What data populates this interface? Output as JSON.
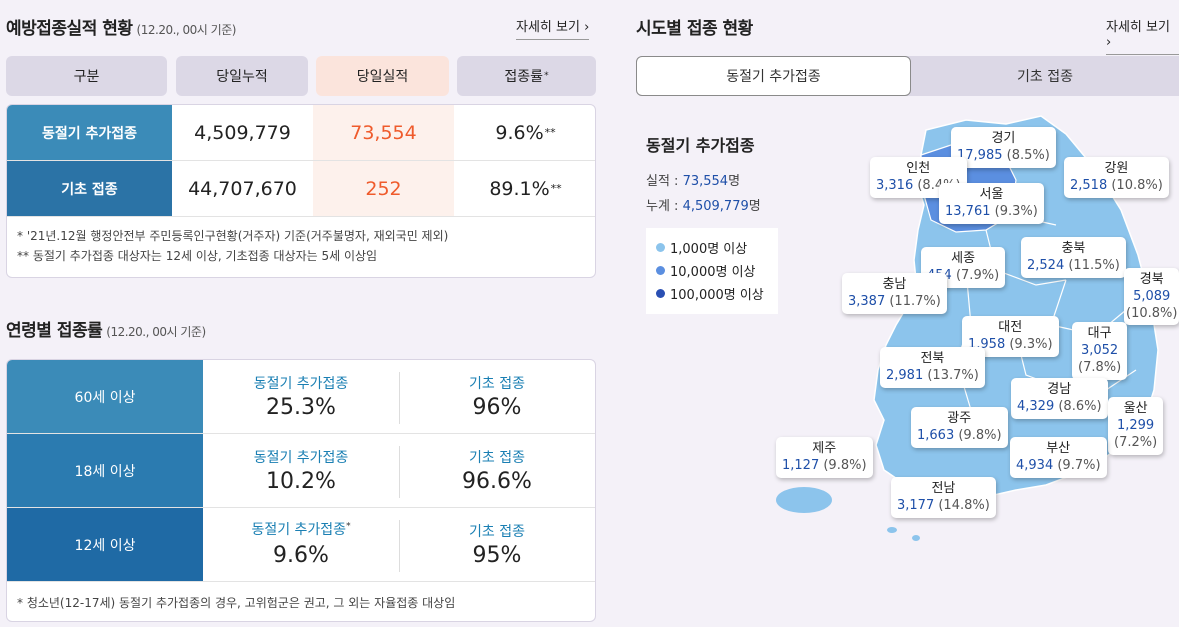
{
  "left": {
    "title": "예방접종실적 현황",
    "subtitle": "(12.20., 00시 기준)",
    "more": "자세히 보기 ›",
    "headers": [
      "구분",
      "당일누적",
      "당일실적",
      "접종률"
    ],
    "header_sup": "*",
    "rows": [
      {
        "label": "동절기 추가접종",
        "cumulative": "4,509,779",
        "daily": "73,554",
        "rate": "9.6%",
        "rate_sup": "**"
      },
      {
        "label": "기초 접종",
        "cumulative": "44,707,670",
        "daily": "252",
        "rate": "89.1%",
        "rate_sup": "**"
      }
    ],
    "notes": [
      "* '21년.12월 행정안전부 주민등록인구현황(거주자) 기준(거주불명자, 재외국민 제외)",
      "** 동절기 추가접종 대상자는 12세 이상, 기초접종 대상자는 5세 이상임"
    ]
  },
  "age": {
    "title": "연령별 접종률",
    "subtitle": "(12.20., 00시 기준)",
    "rows": [
      {
        "label": "60세 이상",
        "a_label": "동절기 추가접종",
        "a_sup": "",
        "a_val": "25.3%",
        "b_label": "기초 접종",
        "b_val": "96%"
      },
      {
        "label": "18세 이상",
        "a_label": "동절기 추가접종",
        "a_sup": "",
        "a_val": "10.2%",
        "b_label": "기초 접종",
        "b_val": "96.6%"
      },
      {
        "label": "12세 이상",
        "a_label": "동절기 추가접종",
        "a_sup": "*",
        "a_val": "9.6%",
        "b_label": "기초 접종",
        "b_val": "95%"
      }
    ],
    "note": "* 청소년(12-17세) 동절기 추가접종의 경우, 고위험군은 권고, 그 외는 자율접종 대상임"
  },
  "right": {
    "title": "시도별 접종 현황",
    "more": "자세히 보기 ›",
    "tabs": [
      "동절기 추가접종",
      "기초 접종"
    ],
    "info": {
      "title": "동절기 추가접종",
      "daily_label": "실적 :",
      "daily_value": "73,554",
      "total_label": "누계 :",
      "total_value": "4,509,779",
      "unit": "명"
    },
    "legend": [
      {
        "label": "1,000명 이상",
        "color": "#8cc4ec"
      },
      {
        "label": "10,000명 이상",
        "color": "#5b8fe0"
      },
      {
        "label": "100,000명 이상",
        "color": "#2a4fb3"
      }
    ],
    "regions": [
      {
        "name": "경기",
        "num": "17,985",
        "pct": "(8.5%)"
      },
      {
        "name": "인천",
        "num": "3,316",
        "pct": "(8.4%)"
      },
      {
        "name": "강원",
        "num": "2,518",
        "pct": "(10.8%)"
      },
      {
        "name": "서울",
        "num": "13,761",
        "pct": "(9.3%)"
      },
      {
        "name": "세종",
        "num": "454",
        "pct": "(7.9%)"
      },
      {
        "name": "충북",
        "num": "2,524",
        "pct": "(11.5%)"
      },
      {
        "name": "충남",
        "num": "3,387",
        "pct": "(11.7%)"
      },
      {
        "name": "경북",
        "num": "5,089",
        "pct": "(10.8%)"
      },
      {
        "name": "대전",
        "num": "1,958",
        "pct": "(9.3%)"
      },
      {
        "name": "대구",
        "num": "3,052",
        "pct": "(7.8%)"
      },
      {
        "name": "전북",
        "num": "2,981",
        "pct": "(13.7%)"
      },
      {
        "name": "경남",
        "num": "4,329",
        "pct": "(8.6%)"
      },
      {
        "name": "울산",
        "num": "1,299",
        "pct": "(7.2%)"
      },
      {
        "name": "광주",
        "num": "1,663",
        "pct": "(9.8%)"
      },
      {
        "name": "제주",
        "num": "1,127",
        "pct": "(9.8%)"
      },
      {
        "name": "부산",
        "num": "4,934",
        "pct": "(9.7%)"
      },
      {
        "name": "전남",
        "num": "3,177",
        "pct": "(14.8%)"
      }
    ],
    "colors": {
      "map_light": "#8cc4ec",
      "map_mid": "#5b8fe0",
      "accent": "#ef5b2c",
      "header_blue": "#3b8bb8"
    }
  }
}
